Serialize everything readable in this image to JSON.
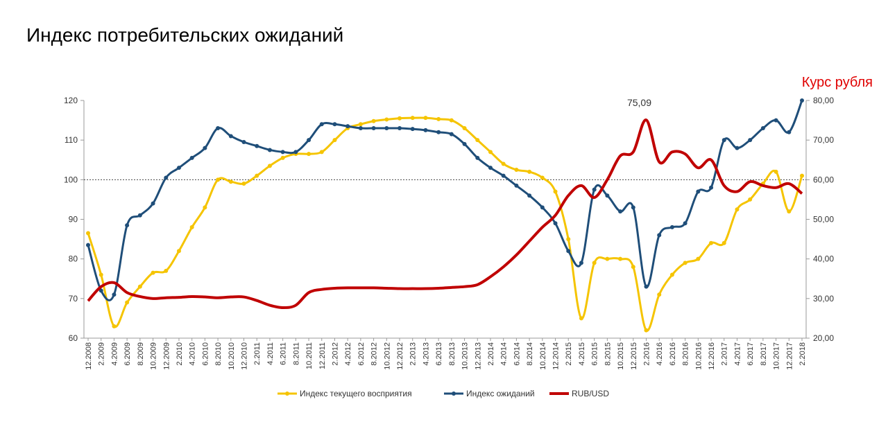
{
  "chart_data": {
    "type": "line",
    "title": "Индекс потребительских ожиданий",
    "y2_label": "Курс рубля",
    "categories": [
      "12.2008",
      "2.2009",
      "4.2009",
      "6.2009",
      "8.2009",
      "10.2009",
      "12.2009",
      "2.2010",
      "4.2010",
      "6.2010",
      "8.2010",
      "10.2010",
      "12.2010",
      "2.2011",
      "4.2011",
      "6.2011",
      "8.2011",
      "10.2011",
      "12.2011",
      "2.2012",
      "4.2012",
      "6.2012",
      "8.2012",
      "10.2012",
      "12.2012",
      "2.2013",
      "4.2013",
      "6.2013",
      "8.2013",
      "10.2013",
      "12.2013",
      "2.2014",
      "4.2014",
      "6.2014",
      "8.2014",
      "10.2014",
      "12.2014",
      "2.2015",
      "4.2015",
      "6.2015",
      "8.2015",
      "10.2015",
      "12.2015",
      "2.2016",
      "4.2016",
      "6.2016",
      "8.2016",
      "10.2016",
      "12.2016",
      "2.2017",
      "4.2017",
      "6.2017",
      "8.2017",
      "10.2017",
      "12.2017",
      "2.2018"
    ],
    "ylim": [
      60,
      120
    ],
    "yticks": [
      60,
      70,
      80,
      90,
      100,
      110,
      120
    ],
    "y2lim": [
      20,
      80
    ],
    "y2ticks": [
      {
        "value": 20,
        "label": "20,00"
      },
      {
        "value": 30,
        "label": "30,00"
      },
      {
        "value": 40,
        "label": "40,00"
      },
      {
        "value": 50,
        "label": "50,00"
      },
      {
        "value": 60,
        "label": "60,00"
      },
      {
        "value": 70,
        "label": "70,00"
      },
      {
        "value": 80,
        "label": "80,00"
      }
    ],
    "reference_y": 100,
    "grid": false,
    "legend": "bottom",
    "series": [
      {
        "name": "Индекс текущего восприятия",
        "color": "#f5c400",
        "markers": true,
        "values": [
          86.5,
          76,
          63,
          69,
          73,
          76.5,
          77,
          82,
          88,
          93,
          100,
          99.5,
          99,
          101,
          103.5,
          105.5,
          106.5,
          106.5,
          107,
          110,
          113,
          114,
          114.8,
          115.2,
          115.5,
          115.6,
          115.6,
          115.3,
          115,
          113,
          110,
          107,
          104,
          102.5,
          102,
          100.5,
          97,
          85,
          65,
          79,
          80,
          80,
          78,
          62,
          71,
          76,
          79,
          80,
          84,
          84,
          92.5,
          95,
          99,
          102,
          92,
          101
        ]
      },
      {
        "name": "Индекс ожиданий",
        "color": "#1f4e79",
        "markers": true,
        "values": [
          83.5,
          72,
          71,
          88.5,
          91,
          94,
          100.5,
          103,
          105.5,
          108,
          113,
          111,
          109.5,
          108.5,
          107.5,
          107,
          107,
          110,
          114,
          114,
          113.5,
          113,
          113,
          113,
          113,
          112.8,
          112.5,
          112,
          111.5,
          109,
          105.5,
          103,
          101,
          98.5,
          96,
          93,
          89,
          82,
          79,
          97.5,
          96,
          92,
          93,
          73,
          86,
          88,
          89,
          97,
          98,
          110,
          108,
          110,
          113,
          115,
          112,
          120
        ]
      },
      {
        "name": "RUB/USD",
        "color": "#c00000",
        "axis": "y2",
        "markers": false,
        "values": [
          29.4,
          33,
          34,
          31.5,
          30.5,
          30,
          30.2,
          30.3,
          30.5,
          30.4,
          30.2,
          30.4,
          30.4,
          29.5,
          28.3,
          27.7,
          28.3,
          31.5,
          32.3,
          32.6,
          32.7,
          32.7,
          32.7,
          32.6,
          32.5,
          32.5,
          32.5,
          32.6,
          32.8,
          33,
          33.5,
          35.5,
          38,
          41,
          44.5,
          48,
          51,
          56,
          58.5,
          55.5,
          60,
          66,
          67,
          75.09,
          64.5,
          67,
          66.5,
          63,
          65,
          58.5,
          57,
          59.5,
          58.5,
          58,
          59,
          56.5
        ],
        "value_labels": [
          null,
          null,
          null,
          null,
          null,
          null,
          null,
          null,
          null,
          null,
          null,
          null,
          null,
          null,
          null,
          null,
          null,
          null,
          null,
          null,
          null,
          null,
          null,
          null,
          null,
          null,
          null,
          null,
          null,
          null,
          null,
          null,
          null,
          null,
          null,
          null,
          null,
          null,
          null,
          null,
          null,
          null,
          null,
          "75,09",
          null,
          null,
          null,
          null,
          null,
          null,
          null,
          null,
          null,
          null,
          null,
          null
        ]
      }
    ]
  }
}
